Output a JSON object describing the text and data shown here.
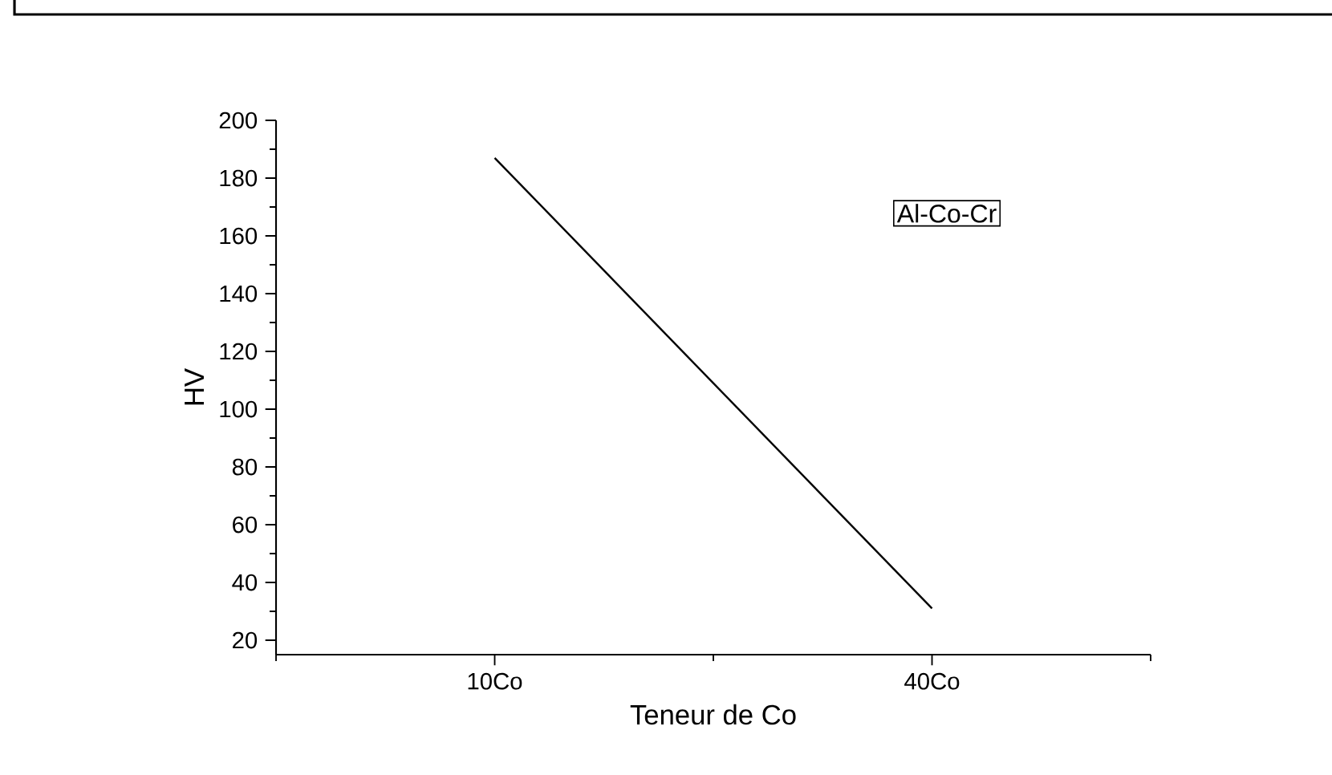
{
  "chart_data": {
    "type": "line",
    "xlabel": "Teneur de  Co",
    "ylabel": "HV",
    "categories": [
      "10Co",
      "40Co"
    ],
    "series": [
      {
        "color": "#000000",
        "values": [
          187,
          31
        ]
      }
    ],
    "ylim": [
      15,
      200
    ],
    "yticks": [
      20,
      40,
      60,
      80,
      100,
      120,
      140,
      160,
      180,
      200
    ],
    "annotations": [
      "Al-Co-Cr"
    ]
  }
}
